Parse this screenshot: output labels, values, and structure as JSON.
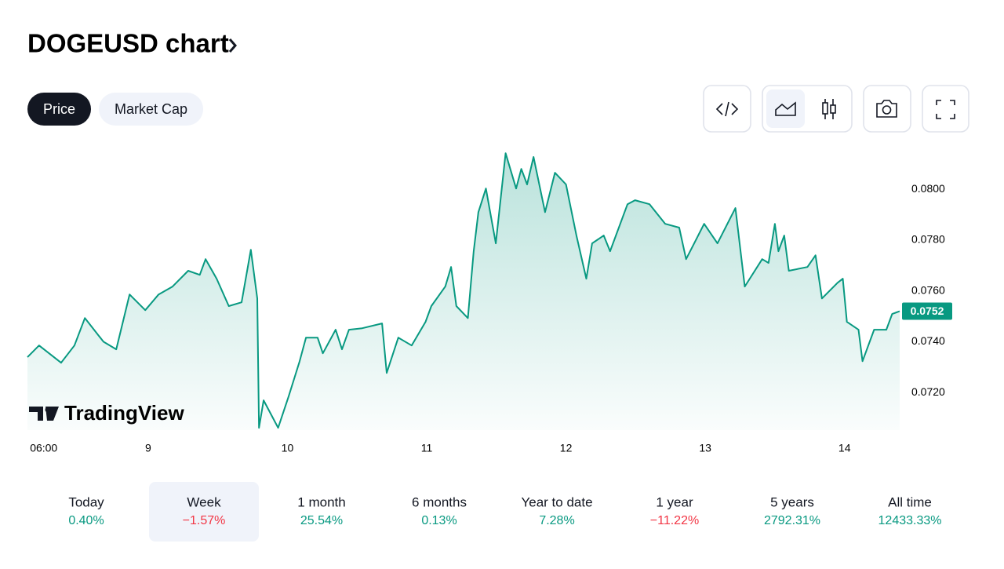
{
  "header": {
    "title": "DOGEUSD chart"
  },
  "tabs": [
    {
      "label": "Price",
      "active": true
    },
    {
      "label": "Market Cap",
      "active": false
    }
  ],
  "watermark": "TradingView",
  "chart_data": {
    "type": "line",
    "x": [
      -20.8,
      -18.8,
      -15.0,
      -12.7,
      -10.9,
      -7.7,
      -5.5,
      -3.2,
      -0.5,
      1.8,
      4.2,
      6.9,
      8.9,
      9.9,
      11.8,
      13.9,
      16.1,
      17.7,
      18.8,
      19.1,
      19.9,
      22.4,
      24.2,
      26.1,
      27.2,
      29.2,
      30.1,
      32.3,
      33.4,
      34.6,
      36.9,
      40.3,
      41.1,
      43.1,
      45.4,
      47.8,
      48.8,
      51.2,
      52.2,
      53.1,
      55.1,
      56.1,
      56.9,
      58.2,
      59.9,
      61.6,
      63.4,
      64.3,
      65.3,
      66.4,
      68.4,
      70.1,
      72.0,
      73.8,
      75.5,
      76.5,
      78.5,
      79.6,
      82.6,
      83.9,
      86.4,
      89.1,
      91.5,
      92.7,
      95.8,
      98.1,
      101.2,
      102.8,
      105.8,
      106.9,
      108.0,
      108.6,
      109.6,
      110.4,
      113.6,
      115.0,
      116.1,
      118.8,
      119.7,
      120.4,
      122.4,
      123.1,
      125.1,
      127.2,
      128.2,
      129.5
    ],
    "series": [
      {
        "name": "DOGEUSD",
        "color": "#089981",
        "values": [
          0.07339,
          0.07385,
          0.07317,
          0.07385,
          0.07493,
          0.074,
          0.0737,
          0.07586,
          0.07524,
          0.07586,
          0.07617,
          0.07679,
          0.07663,
          0.07725,
          0.07648,
          0.0754,
          0.07555,
          0.07762,
          0.0757,
          0.07061,
          0.07169,
          0.07061,
          0.07184,
          0.07323,
          0.07416,
          0.07416,
          0.07354,
          0.07447,
          0.0737,
          0.07447,
          0.07453,
          0.07472,
          0.07277,
          0.07416,
          0.07385,
          0.07478,
          0.0754,
          0.07617,
          0.07694,
          0.0754,
          0.07493,
          0.07756,
          0.0791,
          0.08003,
          0.07787,
          0.08142,
          0.08003,
          0.0808,
          0.08019,
          0.08127,
          0.0791,
          0.08065,
          0.08019,
          0.07818,
          0.07648,
          0.07787,
          0.07818,
          0.07756,
          0.07941,
          0.07957,
          0.07941,
          0.07864,
          0.07849,
          0.07725,
          0.07864,
          0.07787,
          0.07926,
          0.07617,
          0.07725,
          0.0771,
          0.07864,
          0.07756,
          0.07818,
          0.07679,
          0.07694,
          0.0774,
          0.0757,
          0.07632,
          0.07648,
          0.07478,
          0.07447,
          0.07323,
          0.07447,
          0.07447,
          0.07509,
          0.0752
        ]
      }
    ],
    "xlim": [
      -20.8,
      129.5
    ],
    "xticks": [
      {
        "value": -18,
        "label": "06:00"
      },
      {
        "value": 0,
        "label": "9"
      },
      {
        "value": 24,
        "label": "10"
      },
      {
        "value": 48,
        "label": "11"
      },
      {
        "value": 72,
        "label": "12"
      },
      {
        "value": 96,
        "label": "13"
      },
      {
        "value": 120,
        "label": "14"
      }
    ],
    "ylim": [
      0.07052,
      0.08158
    ],
    "yticks": [
      {
        "value": 0.072,
        "label": "0.0720"
      },
      {
        "value": 0.074,
        "label": "0.0740"
      },
      {
        "value": 0.076,
        "label": "0.0760"
      },
      {
        "value": 0.078,
        "label": "0.0780"
      },
      {
        "value": 0.08,
        "label": "0.0800"
      }
    ],
    "price_label": {
      "value": 0.0752,
      "label": "0.0752"
    },
    "grid": false
  },
  "periods": [
    {
      "label": "Today",
      "change": "0.40%",
      "color": "#089981",
      "selected": false
    },
    {
      "label": "Week",
      "change": "−1.57%",
      "color": "#f23645",
      "selected": true
    },
    {
      "label": "1 month",
      "change": "25.54%",
      "color": "#089981",
      "selected": false
    },
    {
      "label": "6 months",
      "change": "0.13%",
      "color": "#089981",
      "selected": false
    },
    {
      "label": "Year to date",
      "change": "7.28%",
      "color": "#089981",
      "selected": false
    },
    {
      "label": "1 year",
      "change": "−11.22%",
      "color": "#f23645",
      "selected": false
    },
    {
      "label": "5 years",
      "change": "2792.31%",
      "color": "#089981",
      "selected": false
    },
    {
      "label": "All time",
      "change": "12433.33%",
      "color": "#089981",
      "selected": false
    }
  ]
}
